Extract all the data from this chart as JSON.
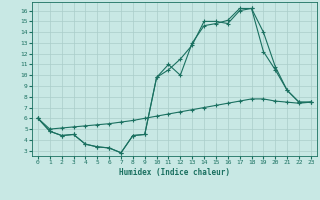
{
  "xlabel": "Humidex (Indice chaleur)",
  "background_color": "#c8e8e4",
  "grid_color": "#aaceca",
  "line_color": "#1a7060",
  "x_ticks": [
    0,
    1,
    2,
    3,
    4,
    5,
    6,
    7,
    8,
    9,
    10,
    11,
    12,
    13,
    14,
    15,
    16,
    17,
    18,
    19,
    20,
    21,
    22,
    23
  ],
  "y_ticks": [
    3,
    4,
    5,
    6,
    7,
    8,
    9,
    10,
    11,
    12,
    13,
    14,
    15,
    16
  ],
  "xlim": [
    -0.5,
    23.5
  ],
  "ylim": [
    2.5,
    16.8
  ],
  "series": [
    {
      "x": [
        0,
        1,
        2,
        3,
        4,
        5,
        6,
        7,
        8,
        9,
        10,
        11,
        12,
        13,
        14,
        15,
        16,
        17,
        18,
        19,
        20,
        21,
        22,
        23
      ],
      "y": [
        6.0,
        4.8,
        4.4,
        4.5,
        3.6,
        3.35,
        3.25,
        2.8,
        4.4,
        4.5,
        9.8,
        11.0,
        10.0,
        13.0,
        14.6,
        14.8,
        15.1,
        16.2,
        16.2,
        14.0,
        10.8,
        8.6,
        7.5,
        7.5
      ]
    },
    {
      "x": [
        0,
        1,
        2,
        3,
        4,
        5,
        6,
        7,
        8,
        9,
        10,
        11,
        12,
        13,
        14,
        15,
        16,
        17,
        18,
        19,
        20,
        21,
        22,
        23
      ],
      "y": [
        6.0,
        4.8,
        4.4,
        4.5,
        3.6,
        3.35,
        3.25,
        2.8,
        4.4,
        4.5,
        9.8,
        10.5,
        11.5,
        12.8,
        15.0,
        15.0,
        14.8,
        16.0,
        16.2,
        12.2,
        10.5,
        8.6,
        7.5,
        7.5
      ]
    },
    {
      "x": [
        0,
        1,
        2,
        3,
        4,
        5,
        6,
        7,
        8,
        9,
        10,
        11,
        12,
        13,
        14,
        15,
        16,
        17,
        18,
        19,
        20,
        21,
        22,
        23
      ],
      "y": [
        6.0,
        5.0,
        5.1,
        5.2,
        5.3,
        5.4,
        5.5,
        5.65,
        5.8,
        6.0,
        6.2,
        6.4,
        6.6,
        6.8,
        7.0,
        7.2,
        7.4,
        7.6,
        7.8,
        7.8,
        7.6,
        7.5,
        7.4,
        7.5
      ]
    }
  ]
}
